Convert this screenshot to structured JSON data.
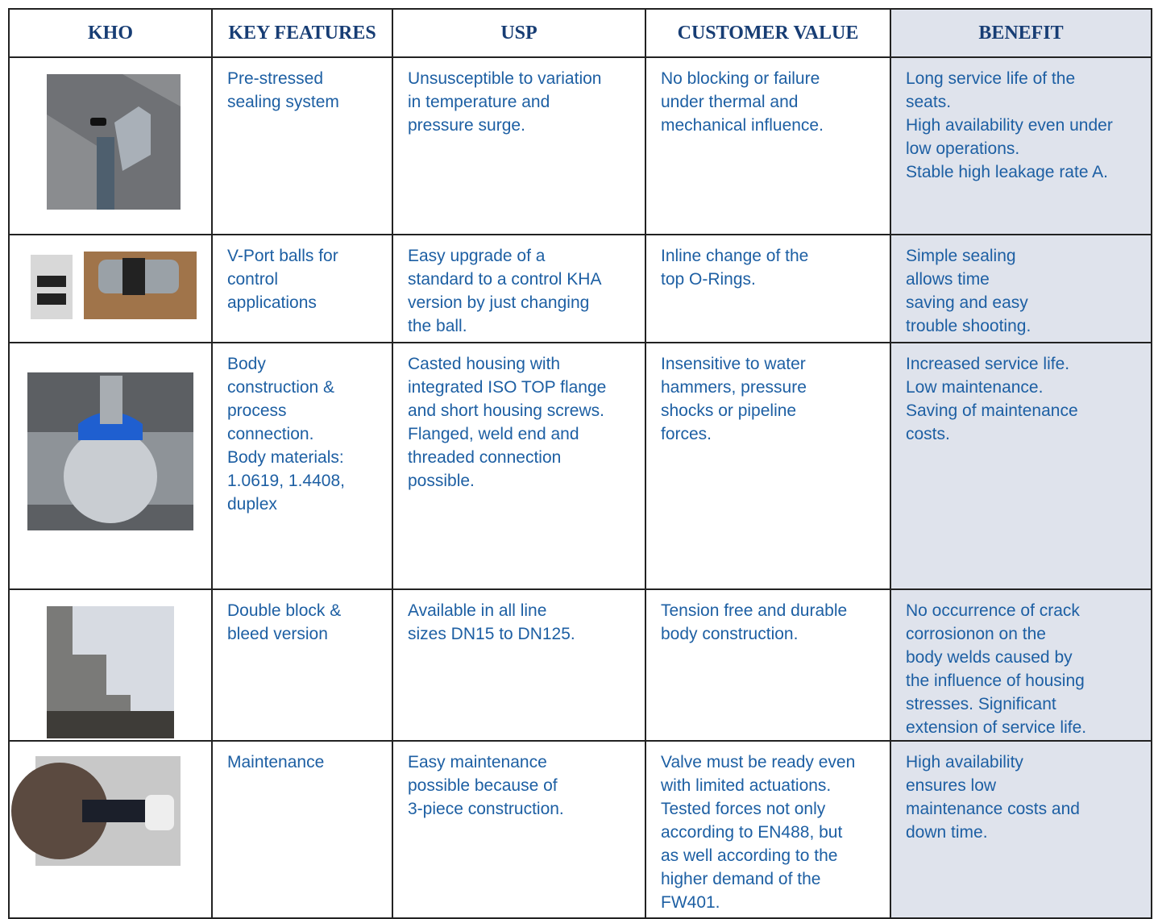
{
  "table": {
    "header": [
      "KHO",
      "KEY FEATURES",
      "USP",
      "CUSTOMER VALUE",
      "BENEFIT"
    ],
    "rows": [
      {
        "features": [
          "Pre-stressed",
          "sealing system"
        ],
        "usp": [
          "Unsusceptible to variation",
          "in temperature and",
          "pressure surge."
        ],
        "customer_value": [
          "No blocking or failure",
          "under thermal and",
          "mechanical influence."
        ],
        "benefit": [
          "Long service life of the",
          "seats.",
          "High availability even under",
          "low operations.",
          "Stable high leakage rate A."
        ]
      },
      {
        "features": [
          "V-Port balls for",
          "control",
          "applications"
        ],
        "usp": [
          "Easy upgrade of a",
          "standard to a control KHA",
          "version by just changing",
          "the ball."
        ],
        "customer_value": [
          "Inline change of the",
          "top O-Rings."
        ],
        "benefit": [
          "Simple sealing",
          "allows time",
          "saving and easy",
          "trouble shooting."
        ]
      },
      {
        "features": [
          "Body",
          "construction &",
          "process",
          "connection.",
          "Body materials:",
          "1.0619, 1.4408,",
          "duplex"
        ],
        "usp": [
          "Casted housing with",
          "integrated ISO TOP flange",
          "and short housing screws.",
          "Flanged, weld end and",
          "threaded connection",
          "possible."
        ],
        "customer_value": [
          "Insensitive to water",
          "hammers, pressure",
          "shocks or pipeline",
          "forces."
        ],
        "benefit": [
          "Increased service life.",
          "Low maintenance.",
          "Saving of maintenance",
          "costs."
        ]
      },
      {
        "features": [
          "Double block &",
          "bleed version"
        ],
        "usp": [
          "Available in all line",
          "sizes DN15 to DN125."
        ],
        "customer_value": [
          "Tension free and durable",
          "body construction."
        ],
        "benefit": [
          "No occurrence of crack",
          "corrosionon on the",
          "body welds caused by",
          "the influence of housing",
          "stresses. Significant",
          "extension of service life."
        ]
      },
      {
        "features": [
          "Maintenance"
        ],
        "usp": [
          "Easy maintenance",
          "possible because of",
          "3-piece construction."
        ],
        "customer_value": [
          "Valve must be ready even",
          "with limited actuations.",
          "Tested forces not only",
          "according to EN488, but",
          "as well according to the",
          "higher demand of the",
          "FW401."
        ],
        "benefit": [
          "High availability",
          "ensures low",
          "maintenance costs and",
          "down time."
        ]
      }
    ]
  }
}
